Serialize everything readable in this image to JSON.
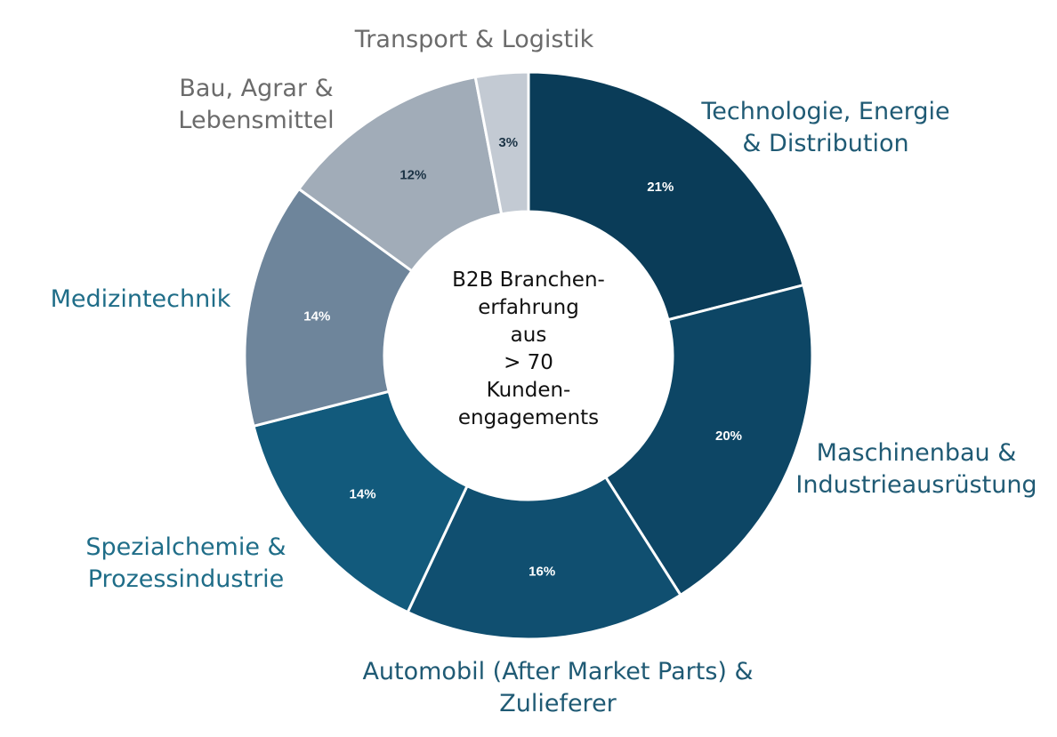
{
  "chart_data": {
    "type": "pie",
    "variant": "donut",
    "center_text": [
      "B2B Branchen-",
      "erfahrung",
      "aus",
      "> 70",
      "Kunden-",
      "engagements"
    ],
    "slices": [
      {
        "label": [
          "Technologie, Energie",
          "& Distribution"
        ],
        "value": 21,
        "value_label": "21%",
        "color": "#0a3c58",
        "label_color": "#1f5a74",
        "value_color": "#ffffff"
      },
      {
        "label": [
          "Maschinenbau &",
          "Industrieausrüstung"
        ],
        "value": 20,
        "value_label": "20%",
        "color": "#0d4665",
        "label_color": "#1f5a74",
        "value_color": "#ffffff"
      },
      {
        "label": [
          "Automobil (After Market Parts) &",
          "Zulieferer"
        ],
        "value": 16,
        "value_label": "16%",
        "color": "#104f70",
        "label_color": "#1f5a74",
        "value_color": "#ffffff"
      },
      {
        "label": [
          "Spezialchemie &",
          "Prozessindustrie"
        ],
        "value": 14,
        "value_label": "14%",
        "color": "#125a7c",
        "label_color": "#1f6d88",
        "value_color": "#ffffff"
      },
      {
        "label": [
          "Medizintechnik"
        ],
        "value": 14,
        "value_label": "14%",
        "color": "#6e859b",
        "label_color": "#1f6d88",
        "value_color": "#ffffff"
      },
      {
        "label": [
          "Bau, Agrar &",
          "Lebensmittel"
        ],
        "value": 12,
        "value_label": "12%",
        "color": "#a1acb8",
        "label_color": "#6b6b6b",
        "value_color": "#1b3345"
      },
      {
        "label": [
          "Transport & Logistik"
        ],
        "value": 3,
        "value_label": "3%",
        "color": "#c3cad3",
        "label_color": "#6b6b6b",
        "value_color": "#1b3345"
      }
    ]
  }
}
